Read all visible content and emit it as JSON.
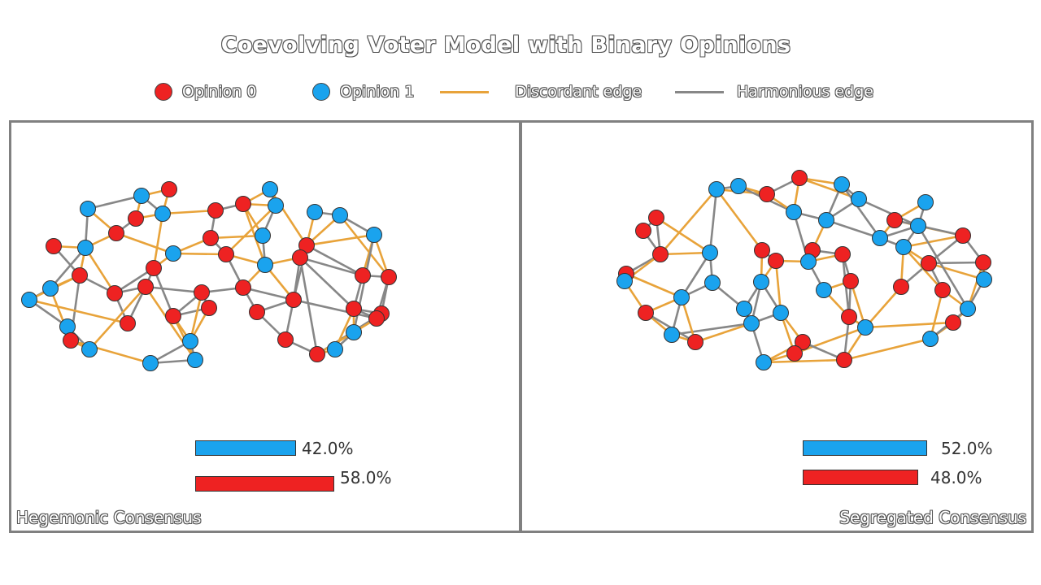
{
  "title": "Coevolving Voter Model with Binary Opinions",
  "colors": {
    "opinion0": "#ee2222",
    "opinion1": "#1aa3ee",
    "discordant": "#e8a33a",
    "harmonious": "#878787"
  },
  "legend": {
    "opinion0": "Opinion 0",
    "opinion1": "Opinion 1",
    "discordant": "Discordant edge",
    "harmonious": "Harmonious edge"
  },
  "panels": [
    {
      "label": "Hegemonic Consensus",
      "opinion1_fraction": 0.42,
      "opinion1_label": "42.0%",
      "opinion0_fraction": 0.58,
      "opinion0_label": "58.0%"
    },
    {
      "label": "Segregated Consensus",
      "opinion1_fraction": 0.52,
      "opinion1_label": "52.0%",
      "opinion0_fraction": 0.48,
      "opinion0_label": "48.0%"
    }
  ]
}
